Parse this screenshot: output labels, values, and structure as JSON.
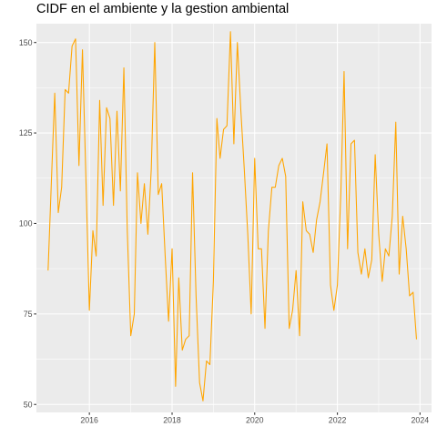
{
  "chart_data": {
    "type": "line",
    "title": "CIDF en el ambiente y la gestion ambiental",
    "xlabel": "",
    "ylabel": "",
    "x_axis": "date",
    "x_ticks": [
      {
        "date": "2016-01-01",
        "label": "2016"
      },
      {
        "date": "2018-01-01",
        "label": "2018"
      },
      {
        "date": "2020-01-01",
        "label": "2020"
      },
      {
        "date": "2022-01-01",
        "label": "2022"
      },
      {
        "date": "2024-01-01",
        "label": "2024"
      }
    ],
    "y_ticks": [
      50,
      75,
      100,
      125,
      150
    ],
    "xlim": [
      "2014-09-20",
      "2024-04-12"
    ],
    "ylim": [
      47.8,
      155.2
    ],
    "grid": true,
    "legend": "none",
    "line_color": "#FFA500",
    "panel_color": "#EBEBEB",
    "grid_color": "#FFFFFF",
    "series": [
      {
        "x": [
          "2015-01",
          "2015-02",
          "2015-03",
          "2015-04",
          "2015-05",
          "2015-06",
          "2015-07",
          "2015-08",
          "2015-09",
          "2015-10",
          "2015-11",
          "2015-12",
          "2016-01",
          "2016-02",
          "2016-03",
          "2016-04",
          "2016-05",
          "2016-06",
          "2016-07",
          "2016-08",
          "2016-09",
          "2016-10",
          "2016-11",
          "2016-12",
          "2017-01",
          "2017-02",
          "2017-03",
          "2017-04",
          "2017-05",
          "2017-06",
          "2017-07",
          "2017-08",
          "2017-09",
          "2017-10",
          "2017-11",
          "2017-12",
          "2018-01",
          "2018-02",
          "2018-03",
          "2018-04",
          "2018-05",
          "2018-06",
          "2018-07",
          "2018-08",
          "2018-09",
          "2018-10",
          "2018-11",
          "2018-12",
          "2019-01",
          "2019-02",
          "2019-03",
          "2019-04",
          "2019-05",
          "2019-06",
          "2019-07",
          "2019-08",
          "2019-09",
          "2019-10",
          "2019-11",
          "2019-12",
          "2020-01",
          "2020-02",
          "2020-03",
          "2020-04",
          "2020-05",
          "2020-06",
          "2020-07",
          "2020-08",
          "2020-09",
          "2020-10",
          "2020-11",
          "2020-12",
          "2021-01",
          "2021-02",
          "2021-03",
          "2021-04",
          "2021-05",
          "2021-06",
          "2021-07",
          "2021-08",
          "2021-09",
          "2021-10",
          "2021-11",
          "2021-12",
          "2022-01",
          "2022-02",
          "2022-03",
          "2022-04",
          "2022-05",
          "2022-06",
          "2022-07",
          "2022-08",
          "2022-09",
          "2022-10",
          "2022-11",
          "2022-12",
          "2023-01",
          "2023-02",
          "2023-03",
          "2023-04",
          "2023-05",
          "2023-06",
          "2023-07",
          "2023-08",
          "2023-09",
          "2023-10",
          "2023-11",
          "2023-12"
        ],
        "values": [
          87,
          113,
          136,
          103,
          110,
          137,
          136,
          149,
          151,
          116,
          148,
          113,
          76,
          98,
          91,
          134,
          105,
          132,
          129,
          105,
          131,
          109,
          143,
          98,
          69,
          75,
          114,
          100,
          111,
          97,
          115,
          150,
          108,
          111,
          91,
          73,
          93,
          55,
          85,
          65,
          68,
          69,
          114,
          80,
          56,
          51,
          62,
          61,
          84,
          129,
          118,
          126,
          127,
          153,
          122,
          150,
          131,
          115,
          97,
          75,
          118,
          93,
          93,
          71,
          98,
          110,
          110,
          116,
          118,
          113,
          71,
          76,
          87,
          69,
          106,
          98,
          97,
          92,
          101,
          106,
          114,
          122,
          83,
          76,
          83,
          109,
          142,
          93,
          122,
          123,
          92,
          86,
          93,
          85,
          90,
          119,
          97,
          84,
          93,
          91,
          102,
          128,
          86,
          102,
          93,
          80,
          81,
          68
        ]
      }
    ]
  }
}
